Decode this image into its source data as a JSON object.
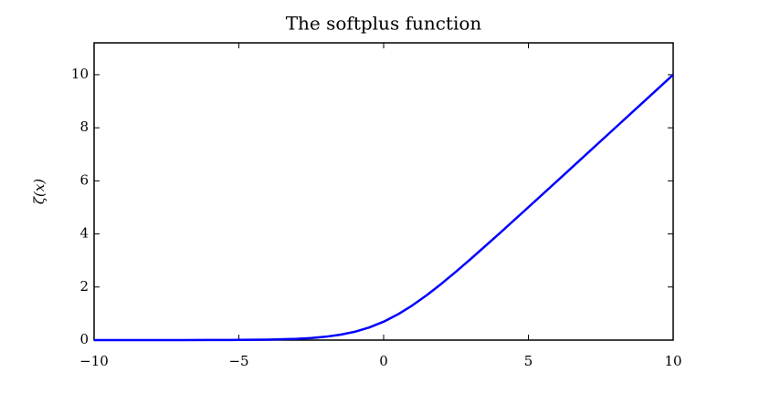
{
  "chart_data": {
    "type": "line",
    "title": "The softplus function",
    "y_label": "ζ(x)",
    "x": [
      -10,
      -9,
      -8,
      -7,
      -6,
      -5,
      -4,
      -3,
      -2.5,
      -2,
      -1.5,
      -1,
      -0.5,
      0,
      0.5,
      1,
      1.5,
      2,
      2.5,
      3,
      4,
      5,
      6,
      7,
      8,
      9,
      10
    ],
    "series": [
      {
        "name": "softplus",
        "color": "#0000ff",
        "values": [
          5e-05,
          0.00012,
          0.00034,
          0.00091,
          0.0025,
          0.0067,
          0.018,
          0.049,
          0.079,
          0.127,
          0.201,
          0.313,
          0.474,
          0.693,
          0.974,
          1.313,
          1.701,
          2.127,
          2.579,
          3.049,
          4.018,
          5.007,
          6.002,
          7.001,
          8.0003,
          9.0001,
          10.00005
        ]
      }
    ],
    "xlim": [
      -10,
      10
    ],
    "ylim": [
      0,
      11.2
    ],
    "xticks": [
      {
        "value": -10,
        "label": "−10"
      },
      {
        "value": -5,
        "label": "−5"
      },
      0,
      5,
      10
    ],
    "yticks": [
      0,
      2,
      4,
      6,
      8,
      10
    ],
    "grid": false
  }
}
